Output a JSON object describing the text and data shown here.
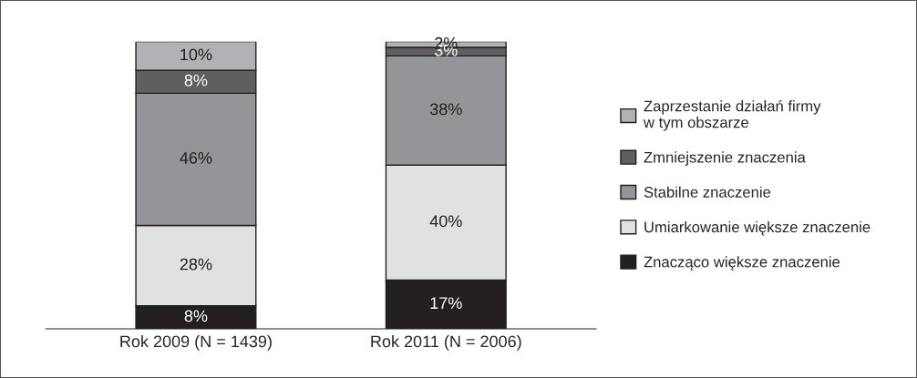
{
  "chart_data": {
    "type": "bar",
    "stacked": true,
    "categories": [
      "Rok 2009 (N = 1439)",
      "Rok 2011 (N = 2006)"
    ],
    "legend": "right",
    "series": [
      {
        "name": "Znacząco większe znaczenie",
        "color": "#231f20",
        "values": [
          8,
          17
        ],
        "value_labels": [
          "8%",
          "17%"
        ]
      },
      {
        "name": "Umiarkowanie większe znaczenie",
        "color": "#e0e1e3",
        "values": [
          28,
          40
        ],
        "value_labels": [
          "28%",
          "40%"
        ]
      },
      {
        "name": "Stabilne znaczenie",
        "color": "#949598",
        "values": [
          46,
          38
        ],
        "value_labels": [
          "46%",
          "38%"
        ]
      },
      {
        "name": "Zmniejszenie znaczenia",
        "color": "#5f5f62",
        "values": [
          8,
          3
        ],
        "value_labels": [
          "8%",
          "3%"
        ]
      },
      {
        "name": "Zaprzestanie działań firmy\nw tym obszarze",
        "color": "#b1b2b5",
        "values": [
          10,
          2
        ],
        "value_labels": [
          "10%",
          "2%"
        ]
      }
    ]
  }
}
